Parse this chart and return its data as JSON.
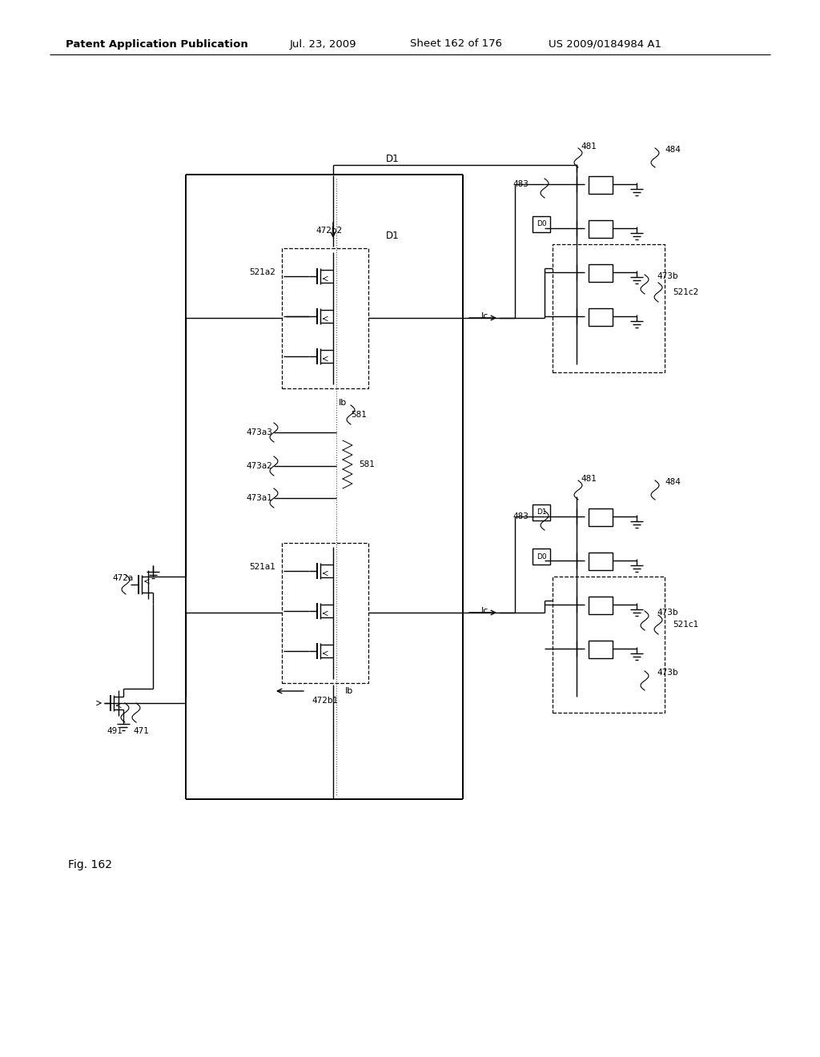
{
  "bg_color": "#ffffff",
  "header_text": "Patent Application Publication",
  "header_date": "Jul. 23, 2009",
  "header_sheet": "Sheet 162 of 176",
  "header_patent": "US 2009/0184984 A1",
  "fig_label": "Fig. 162"
}
